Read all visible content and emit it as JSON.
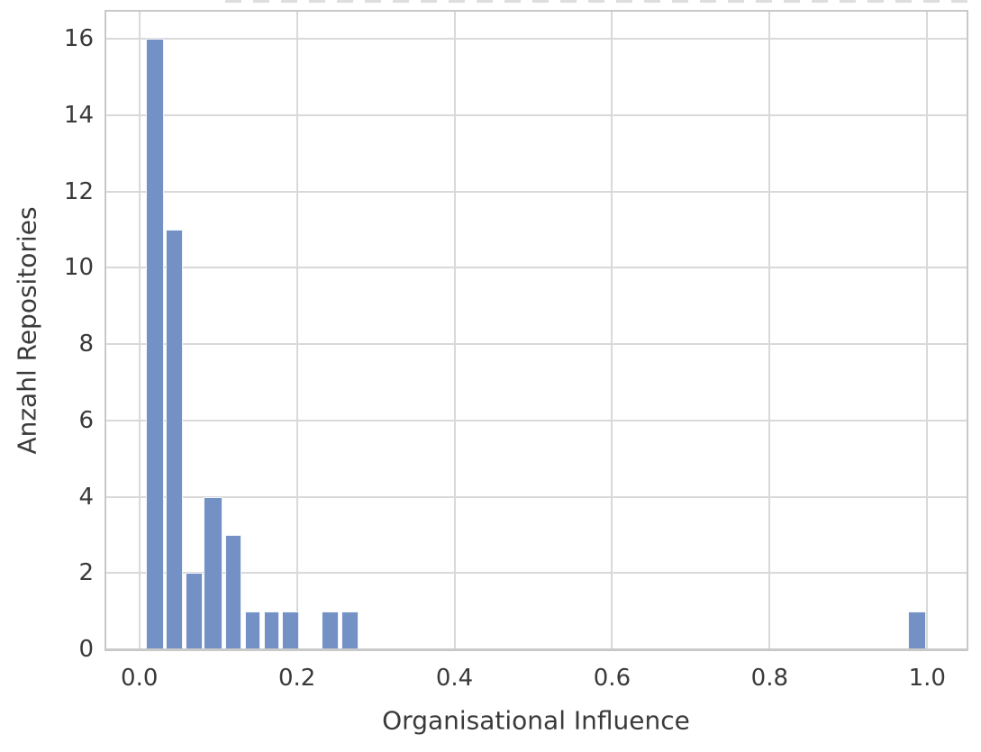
{
  "chart_data": {
    "type": "bar",
    "subtype": "histogram",
    "title": "",
    "xlabel": "Organisational Influence",
    "ylabel": "Anzahl Repositories",
    "xlim": [
      -0.042,
      1.05
    ],
    "ylim": [
      0,
      16.71
    ],
    "grid": true,
    "legend_position": "none",
    "xticks": [
      {
        "value": 0.0,
        "label": "0.0"
      },
      {
        "value": 0.2,
        "label": "0.2"
      },
      {
        "value": 0.4,
        "label": "0.4"
      },
      {
        "value": 0.6,
        "label": "0.6"
      },
      {
        "value": 0.8,
        "label": "0.8"
      },
      {
        "value": 1.0,
        "label": "1.0"
      }
    ],
    "yticks": [
      {
        "value": 0,
        "label": "0"
      },
      {
        "value": 2,
        "label": "2"
      },
      {
        "value": 4,
        "label": "4"
      },
      {
        "value": 6,
        "label": "6"
      },
      {
        "value": 8,
        "label": "8"
      },
      {
        "value": 10,
        "label": "10"
      },
      {
        "value": 12,
        "label": "12"
      },
      {
        "value": 14,
        "label": "14"
      },
      {
        "value": 16,
        "label": "16"
      }
    ],
    "bins": [
      {
        "x0": 0.008,
        "x1": 0.031,
        "count": 16
      },
      {
        "x0": 0.034,
        "x1": 0.055,
        "count": 11
      },
      {
        "x0": 0.059,
        "x1": 0.08,
        "count": 2
      },
      {
        "x0": 0.082,
        "x1": 0.105,
        "count": 4
      },
      {
        "x0": 0.109,
        "x1": 0.13,
        "count": 3
      },
      {
        "x0": 0.134,
        "x1": 0.154,
        "count": 1
      },
      {
        "x0": 0.158,
        "x1": 0.178,
        "count": 1
      },
      {
        "x0": 0.181,
        "x1": 0.203,
        "count": 1
      },
      {
        "x0": 0.231,
        "x1": 0.253,
        "count": 1
      },
      {
        "x0": 0.256,
        "x1": 0.278,
        "count": 1
      },
      {
        "x0": 0.976,
        "x1": 0.999,
        "count": 1
      }
    ],
    "colors": {
      "bar_fill": "#7391c5",
      "bar_edge": "#ffffff",
      "grid_color": "#d9d9d9",
      "spine_color": "#c9c9c9",
      "tick_text": "#3a3a3a",
      "background": "#ffffff"
    }
  }
}
